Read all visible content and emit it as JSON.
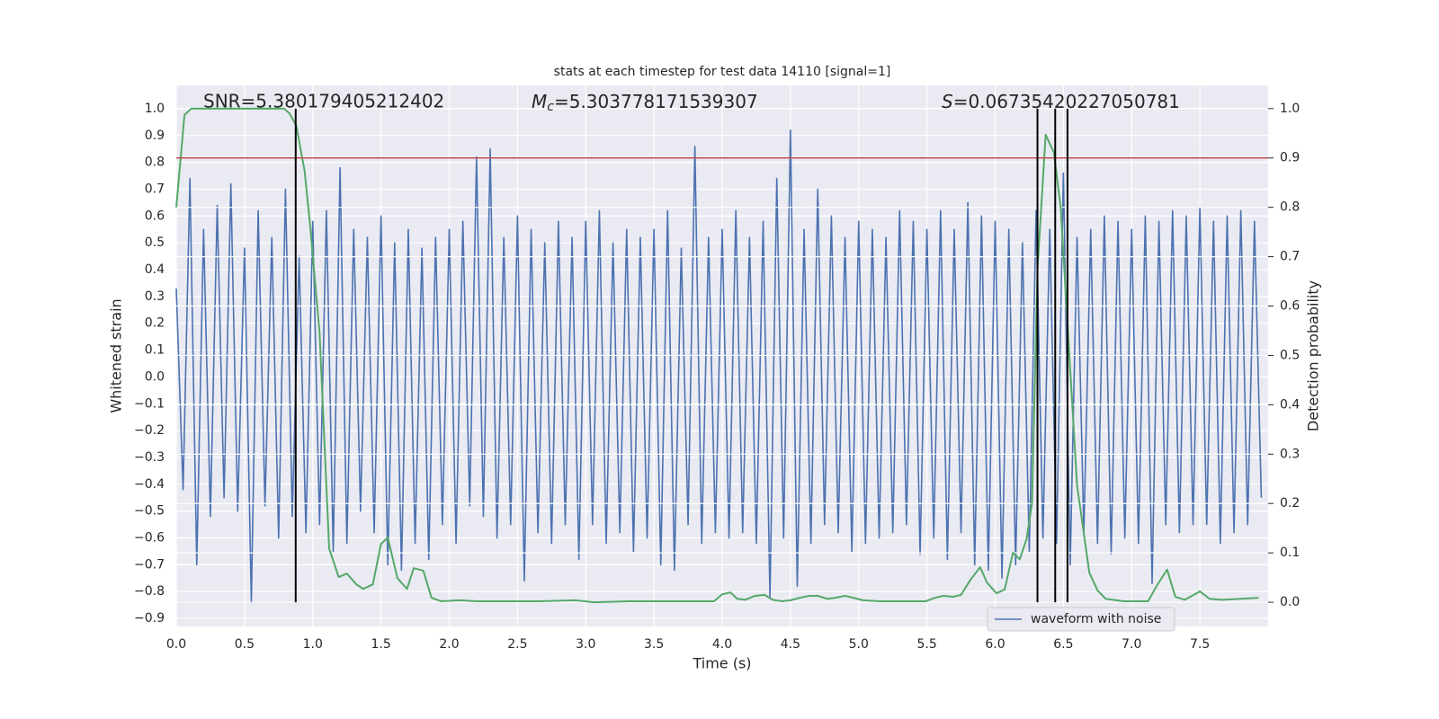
{
  "chart_data": {
    "type": "line",
    "title": "stats at each timestep for test data 14110 [signal=1]",
    "xlabel": "Time (s)",
    "ylabel": "Whitened strain",
    "y2label": "Detection probability",
    "xlim": [
      0,
      8
    ],
    "ylim": [
      -0.93,
      1.087
    ],
    "y2lim": [
      -0.049,
      1.047
    ],
    "xticks": [
      {
        "value": 0,
        "label": "0.0"
      },
      0.5,
      {
        "value": 1,
        "label": "1.0"
      },
      1.5,
      {
        "value": 2,
        "label": "2.0"
      },
      2.5,
      {
        "value": 3,
        "label": "3.0"
      },
      3.5,
      {
        "value": 4,
        "label": "4.0"
      },
      4.5,
      {
        "value": 5,
        "label": "5.0"
      },
      5.5,
      {
        "value": 6,
        "label": "6.0"
      },
      6.5,
      {
        "value": 7,
        "label": "7.0"
      },
      7.5
    ],
    "yticks": [
      {
        "value": -0.9,
        "label": "−0.9"
      },
      {
        "value": -0.8,
        "label": "−0.8"
      },
      {
        "value": -0.7,
        "label": "−0.7"
      },
      {
        "value": -0.6,
        "label": "−0.6"
      },
      {
        "value": -0.5,
        "label": "−0.5"
      },
      {
        "value": -0.4,
        "label": "−0.4"
      },
      {
        "value": -0.3,
        "label": "−0.3"
      },
      {
        "value": -0.2,
        "label": "−0.2"
      },
      {
        "value": -0.1,
        "label": "−0.1"
      },
      {
        "value": 0,
        "label": "0.0"
      },
      0.1,
      0.2,
      0.3,
      0.4,
      0.5,
      0.6,
      0.7,
      0.8,
      0.9,
      {
        "value": 1,
        "label": "1.0"
      }
    ],
    "y2ticks": [
      {
        "value": 0,
        "label": "0.0"
      },
      0.1,
      0.2,
      0.3,
      0.4,
      0.5,
      0.6,
      0.7,
      0.8,
      0.9,
      {
        "value": 1,
        "label": "1.0"
      }
    ],
    "grid": true,
    "legend": "lower right",
    "series": [
      {
        "name": "waveform with noise",
        "color": "#4c72b0",
        "x": [
          0,
          0.05,
          0.1,
          0.15,
          0.2,
          0.25,
          0.3,
          0.35,
          0.4,
          0.45,
          0.5,
          0.55,
          0.6,
          0.65,
          0.7,
          0.75,
          0.8,
          0.85,
          0.9,
          0.95,
          1,
          1.05,
          1.1,
          1.15,
          1.2,
          1.25,
          1.3,
          1.35,
          1.4,
          1.45,
          1.5,
          1.55,
          1.6,
          1.65,
          1.7,
          1.75,
          1.8,
          1.85,
          1.9,
          1.95,
          2,
          2.05,
          2.1,
          2.15,
          2.2,
          2.25,
          2.3,
          2.35,
          2.4,
          2.45,
          2.5,
          2.55,
          2.6,
          2.65,
          2.7,
          2.75,
          2.8,
          2.85,
          2.9,
          2.95,
          3,
          3.05,
          3.1,
          3.15,
          3.2,
          3.25,
          3.3,
          3.35,
          3.4,
          3.45,
          3.5,
          3.55,
          3.6,
          3.65,
          3.7,
          3.75,
          3.8,
          3.85,
          3.9,
          3.95,
          4,
          4.05,
          4.1,
          4.15,
          4.2,
          4.25,
          4.3,
          4.35,
          4.4,
          4.45,
          4.5,
          4.55,
          4.6,
          4.65,
          4.7,
          4.75,
          4.8,
          4.85,
          4.9,
          4.95,
          5,
          5.05,
          5.1,
          5.15,
          5.2,
          5.25,
          5.3,
          5.35,
          5.4,
          5.45,
          5.5,
          5.55,
          5.6,
          5.65,
          5.7,
          5.75,
          5.8,
          5.85,
          5.9,
          5.95,
          6,
          6.05,
          6.1,
          6.15,
          6.2,
          6.25,
          6.3,
          6.35,
          6.4,
          6.45,
          6.5,
          6.55,
          6.6,
          6.65,
          6.7,
          6.75,
          6.8,
          6.85,
          6.9,
          6.95,
          7,
          7.05,
          7.1,
          7.15,
          7.2,
          7.25,
          7.3,
          7.35,
          7.4,
          7.45,
          7.5,
          7.55,
          7.6,
          7.65,
          7.7,
          7.75,
          7.8,
          7.85,
          7.9,
          7.95
        ],
        "values": [
          0.33,
          -0.42,
          0.74,
          -0.7,
          0.55,
          -0.52,
          0.64,
          -0.45,
          0.72,
          -0.5,
          0.48,
          -0.84,
          0.62,
          -0.48,
          0.52,
          -0.6,
          0.7,
          -0.52,
          0.45,
          -0.58,
          0.58,
          -0.55,
          0.62,
          -0.65,
          0.78,
          -0.62,
          0.55,
          -0.5,
          0.52,
          -0.58,
          0.6,
          -0.7,
          0.5,
          -0.72,
          0.55,
          -0.62,
          0.48,
          -0.68,
          0.52,
          -0.55,
          0.55,
          -0.62,
          0.58,
          -0.48,
          0.82,
          -0.52,
          0.85,
          -0.6,
          0.52,
          -0.55,
          0.6,
          -0.76,
          0.55,
          -0.58,
          0.5,
          -0.62,
          0.58,
          -0.55,
          0.52,
          -0.68,
          0.58,
          -0.55,
          0.62,
          -0.62,
          0.5,
          -0.58,
          0.55,
          -0.65,
          0.52,
          -0.6,
          0.55,
          -0.7,
          0.62,
          -0.72,
          0.48,
          -0.55,
          0.86,
          -0.62,
          0.52,
          -0.58,
          0.55,
          -0.6,
          0.62,
          -0.58,
          0.52,
          -0.62,
          0.58,
          -0.82,
          0.74,
          -0.6,
          0.92,
          -0.78,
          0.55,
          -0.62,
          0.7,
          -0.55,
          0.6,
          -0.58,
          0.52,
          -0.65,
          0.58,
          -0.62,
          0.55,
          -0.6,
          0.52,
          -0.58,
          0.62,
          -0.55,
          0.58,
          -0.66,
          0.55,
          -0.6,
          0.62,
          -0.68,
          0.55,
          -0.58,
          0.65,
          -0.7,
          0.6,
          -0.72,
          0.58,
          -0.75,
          0.55,
          -0.7,
          0.5,
          -0.65,
          0.62,
          -0.6,
          0.55,
          -0.62,
          0.76,
          -0.7,
          0.52,
          -0.58,
          0.55,
          -0.62,
          0.6,
          -0.66,
          0.58,
          -0.6,
          0.55,
          -0.62,
          0.6,
          -0.77,
          0.58,
          -0.55,
          0.62,
          -0.58,
          0.6,
          -0.55,
          0.63,
          -0.55,
          0.58,
          -0.62,
          0.6,
          -0.58,
          0.62,
          -0.55,
          0.58,
          -0.45
        ]
      },
      {
        "color": "#55a868",
        "axis": "y2",
        "x": [
          0,
          0.06,
          0.11,
          0.79,
          0.83,
          0.88,
          0.94,
          0.98,
          1.05,
          1.12,
          1.19,
          1.25,
          1.32,
          1.37,
          1.44,
          1.5,
          1.55,
          1.62,
          1.69,
          1.74,
          1.81,
          1.87,
          1.94,
          2.07,
          2.2,
          2.66,
          2.92,
          3.06,
          3.32,
          3.85,
          3.94,
          4,
          4.06,
          4.11,
          4.17,
          4.24,
          4.31,
          4.37,
          4.44,
          4.5,
          4.57,
          4.64,
          4.7,
          4.77,
          4.83,
          4.9,
          4.96,
          5.03,
          5.16,
          5.49,
          5.56,
          5.62,
          5.69,
          5.75,
          5.82,
          5.89,
          5.94,
          6.01,
          6.07,
          6.13,
          6.18,
          6.23,
          6.27,
          6.31,
          6.37,
          6.43,
          6.48,
          6.53,
          6.6,
          6.69,
          6.75,
          6.81,
          6.94,
          7.12,
          7.19,
          7.26,
          7.32,
          7.39,
          7.5,
          7.57,
          7.66,
          7.8,
          7.93
        ],
        "values": [
          0.8,
          0.987,
          1,
          1,
          0.99,
          0.965,
          0.874,
          0.765,
          0.546,
          0.109,
          0.051,
          0.058,
          0.036,
          0.027,
          0.036,
          0.118,
          0.131,
          0.049,
          0.027,
          0.069,
          0.064,
          0.009,
          0.002,
          0.004,
          0.002,
          0.002,
          0.004,
          0,
          0.002,
          0.002,
          0.002,
          0.016,
          0.02,
          0.007,
          0.005,
          0.013,
          0.015,
          0.005,
          0.002,
          0.004,
          0.009,
          0.013,
          0.013,
          0.007,
          0.009,
          0.013,
          0.009,
          0.004,
          0.002,
          0.002,
          0.009,
          0.013,
          0.011,
          0.015,
          0.046,
          0.071,
          0.04,
          0.018,
          0.026,
          0.1,
          0.087,
          0.128,
          0.2,
          0.674,
          0.947,
          0.911,
          0.8,
          0.565,
          0.237,
          0.06,
          0.024,
          0.007,
          0.002,
          0.002,
          0.036,
          0.066,
          0.011,
          0.005,
          0.022,
          0.007,
          0.005,
          0.007,
          0.009
        ]
      }
    ],
    "threshold": {
      "value": 0.9,
      "axis": "y2",
      "color": "#c44e52"
    },
    "vlines": {
      "x": [
        0.875,
        6.31,
        6.44,
        6.53
      ],
      "axis": "y2",
      "ymin": 0,
      "ymax": 1,
      "color": "#000000"
    },
    "annotations": [
      {
        "text": "SNR=5.380179405212402"
      },
      {
        "symbol": "M",
        "subscript": "c",
        "text": "=5.303778171539307"
      },
      {
        "symbol": "S",
        "text": "=0.06735420227050781"
      }
    ]
  }
}
